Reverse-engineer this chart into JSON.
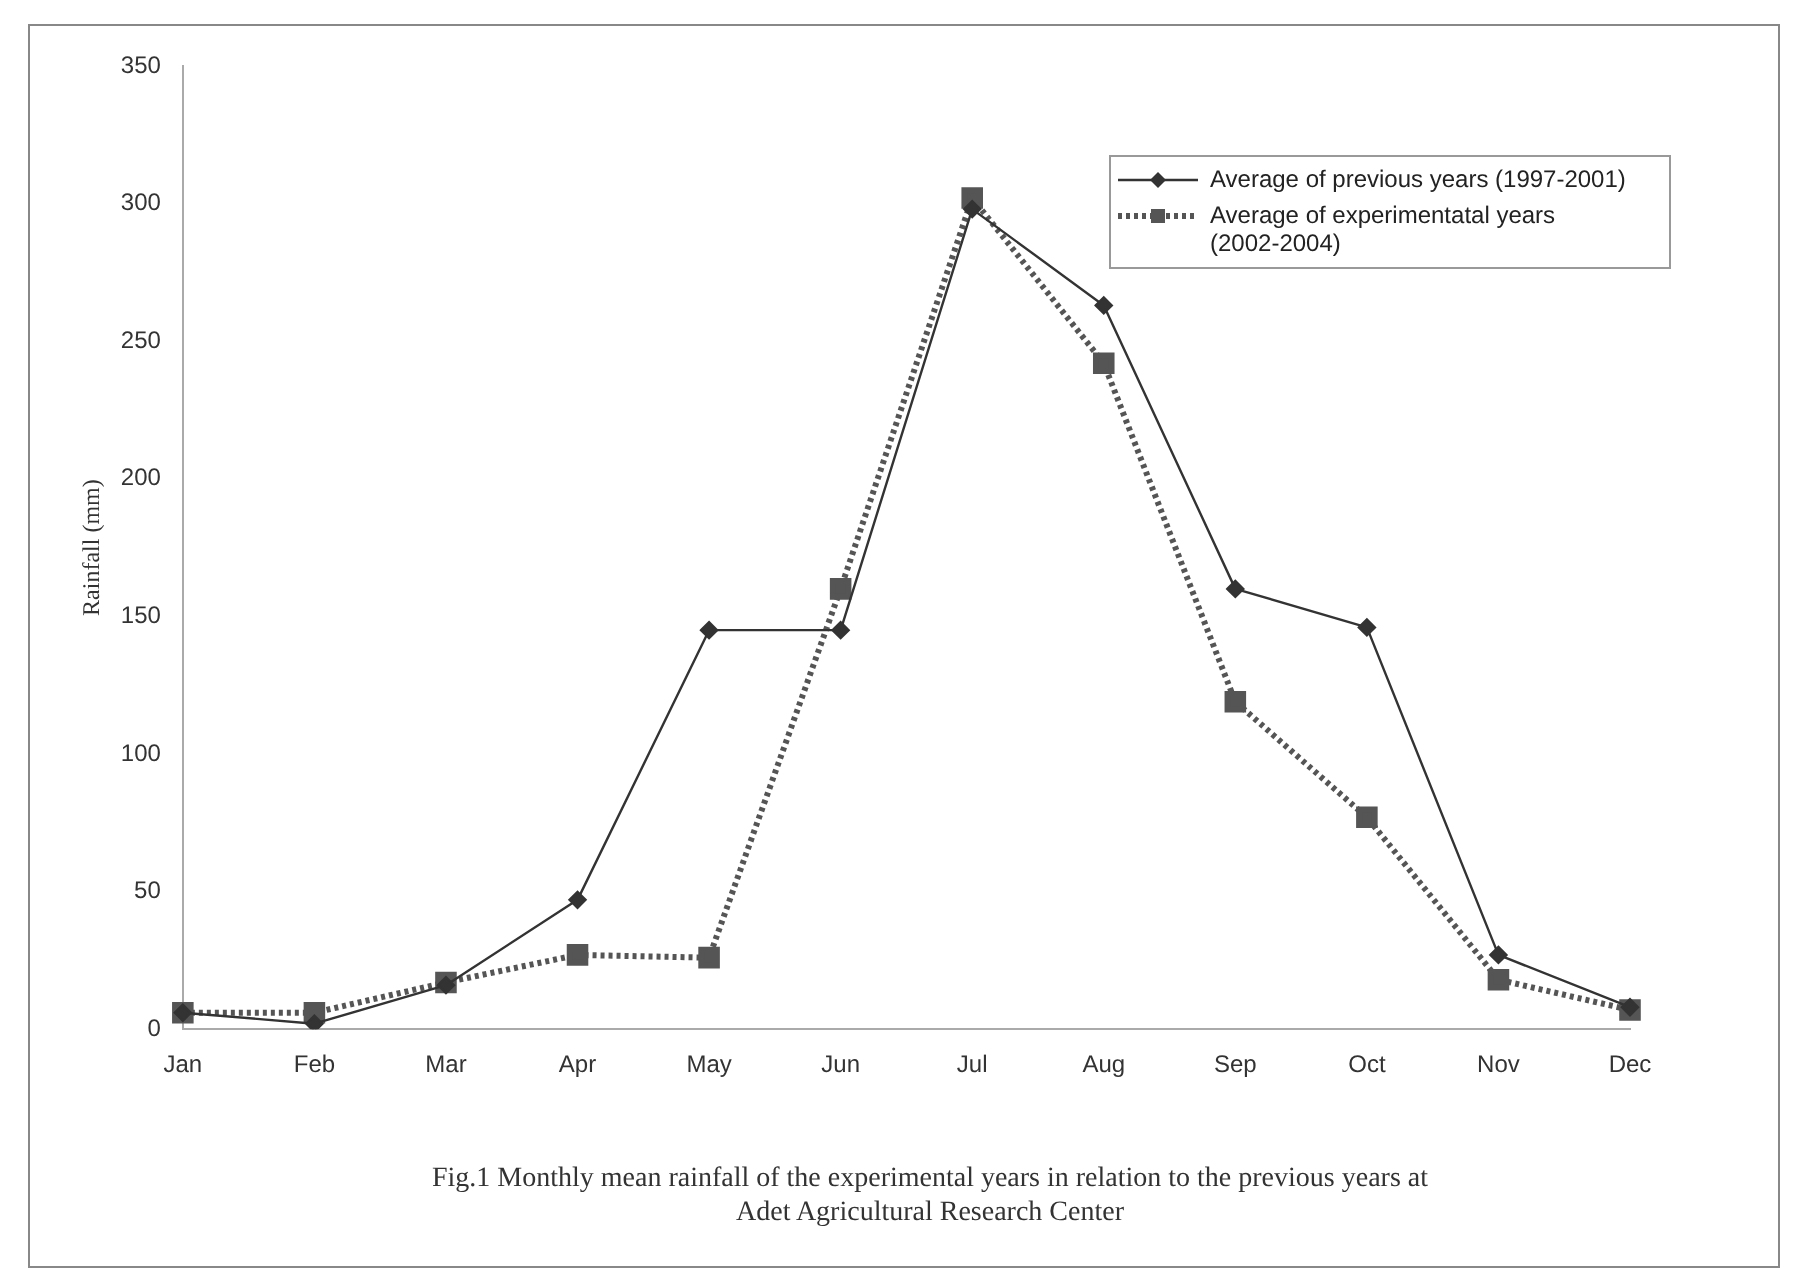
{
  "chart_data": {
    "type": "line",
    "title": "Fig.1  Monthly mean rainfall of the experimental years in relation to the previous years at Adet Agricultural Research Center",
    "ylabel": "Rainfall (mm)",
    "categories": [
      "Jan",
      "Feb",
      "Mar",
      "Apr",
      "May",
      "Jun",
      "Jul",
      "Aug",
      "Sep",
      "Oct",
      "Nov",
      "Dec"
    ],
    "series": [
      {
        "name": "Average of previous years (1997-2001)",
        "color": "#333333",
        "marker": "diamond",
        "line_style": "solid",
        "values": [
          6,
          2,
          16,
          47,
          145,
          145,
          298,
          263,
          160,
          146,
          27,
          8
        ]
      },
      {
        "name": "Average of experimentatal years (2002-2004)",
        "color": "#555555",
        "marker": "square",
        "line_style": "dotted",
        "values": [
          6,
          6,
          17,
          27,
          26,
          160,
          302,
          242,
          119,
          77,
          18,
          7
        ]
      }
    ],
    "ylim": [
      0,
      350
    ],
    "yticks": [
      0,
      50,
      100,
      150,
      200,
      250,
      300,
      350
    ],
    "grid": false,
    "legend": "top right"
  }
}
